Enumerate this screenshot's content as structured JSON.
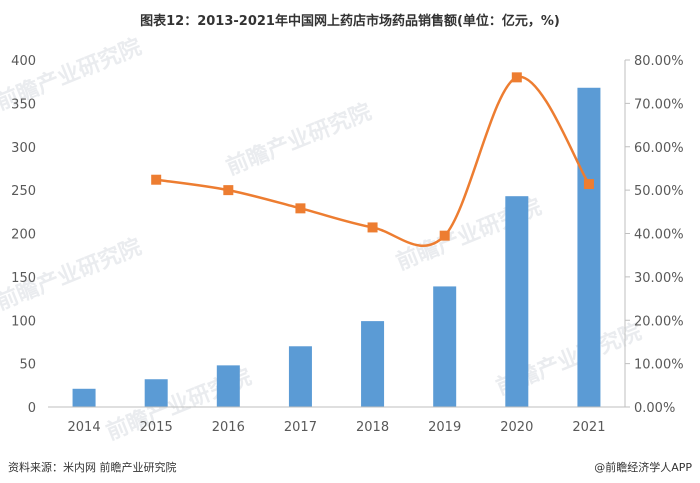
{
  "title": "图表12：2013-2021年中国网上药店市场药品销售额(单位：亿元，%)",
  "source": "资料来源：米内网 前瞻产业研究院",
  "brand": "@前瞻经济学人APP",
  "watermark": "前瞻产业研究院",
  "colors": {
    "bar": "#5b9bd5",
    "line": "#ed7d31",
    "marker": "#ed7d31"
  },
  "chart_data": {
    "type": "bar+line",
    "categories": [
      "2014",
      "2015",
      "2016",
      "2017",
      "2018",
      "2019",
      "2020",
      "2021"
    ],
    "series": [
      {
        "type": "bar",
        "axis": "left",
        "values": [
          21,
          32,
          48,
          70,
          99,
          139,
          243,
          368
        ]
      },
      {
        "type": "line",
        "axis": "right",
        "smooth": true,
        "marker": "square",
        "values": [
          null,
          52.4,
          50.0,
          45.8,
          41.4,
          39.5,
          76.0,
          51.4
        ]
      }
    ],
    "y_left": {
      "min": 0,
      "max": 400,
      "step": 50,
      "ticks": [
        "0",
        "50",
        "100",
        "150",
        "200",
        "250",
        "300",
        "350",
        "400"
      ]
    },
    "y_right": {
      "min": 0,
      "max": 80,
      "step": 10,
      "ticks": [
        "0.00%",
        "10.00%",
        "20.00%",
        "30.00%",
        "40.00%",
        "50.00%",
        "60.00%",
        "70.00%",
        "80.00%"
      ]
    },
    "grid": false,
    "legend": "none"
  }
}
